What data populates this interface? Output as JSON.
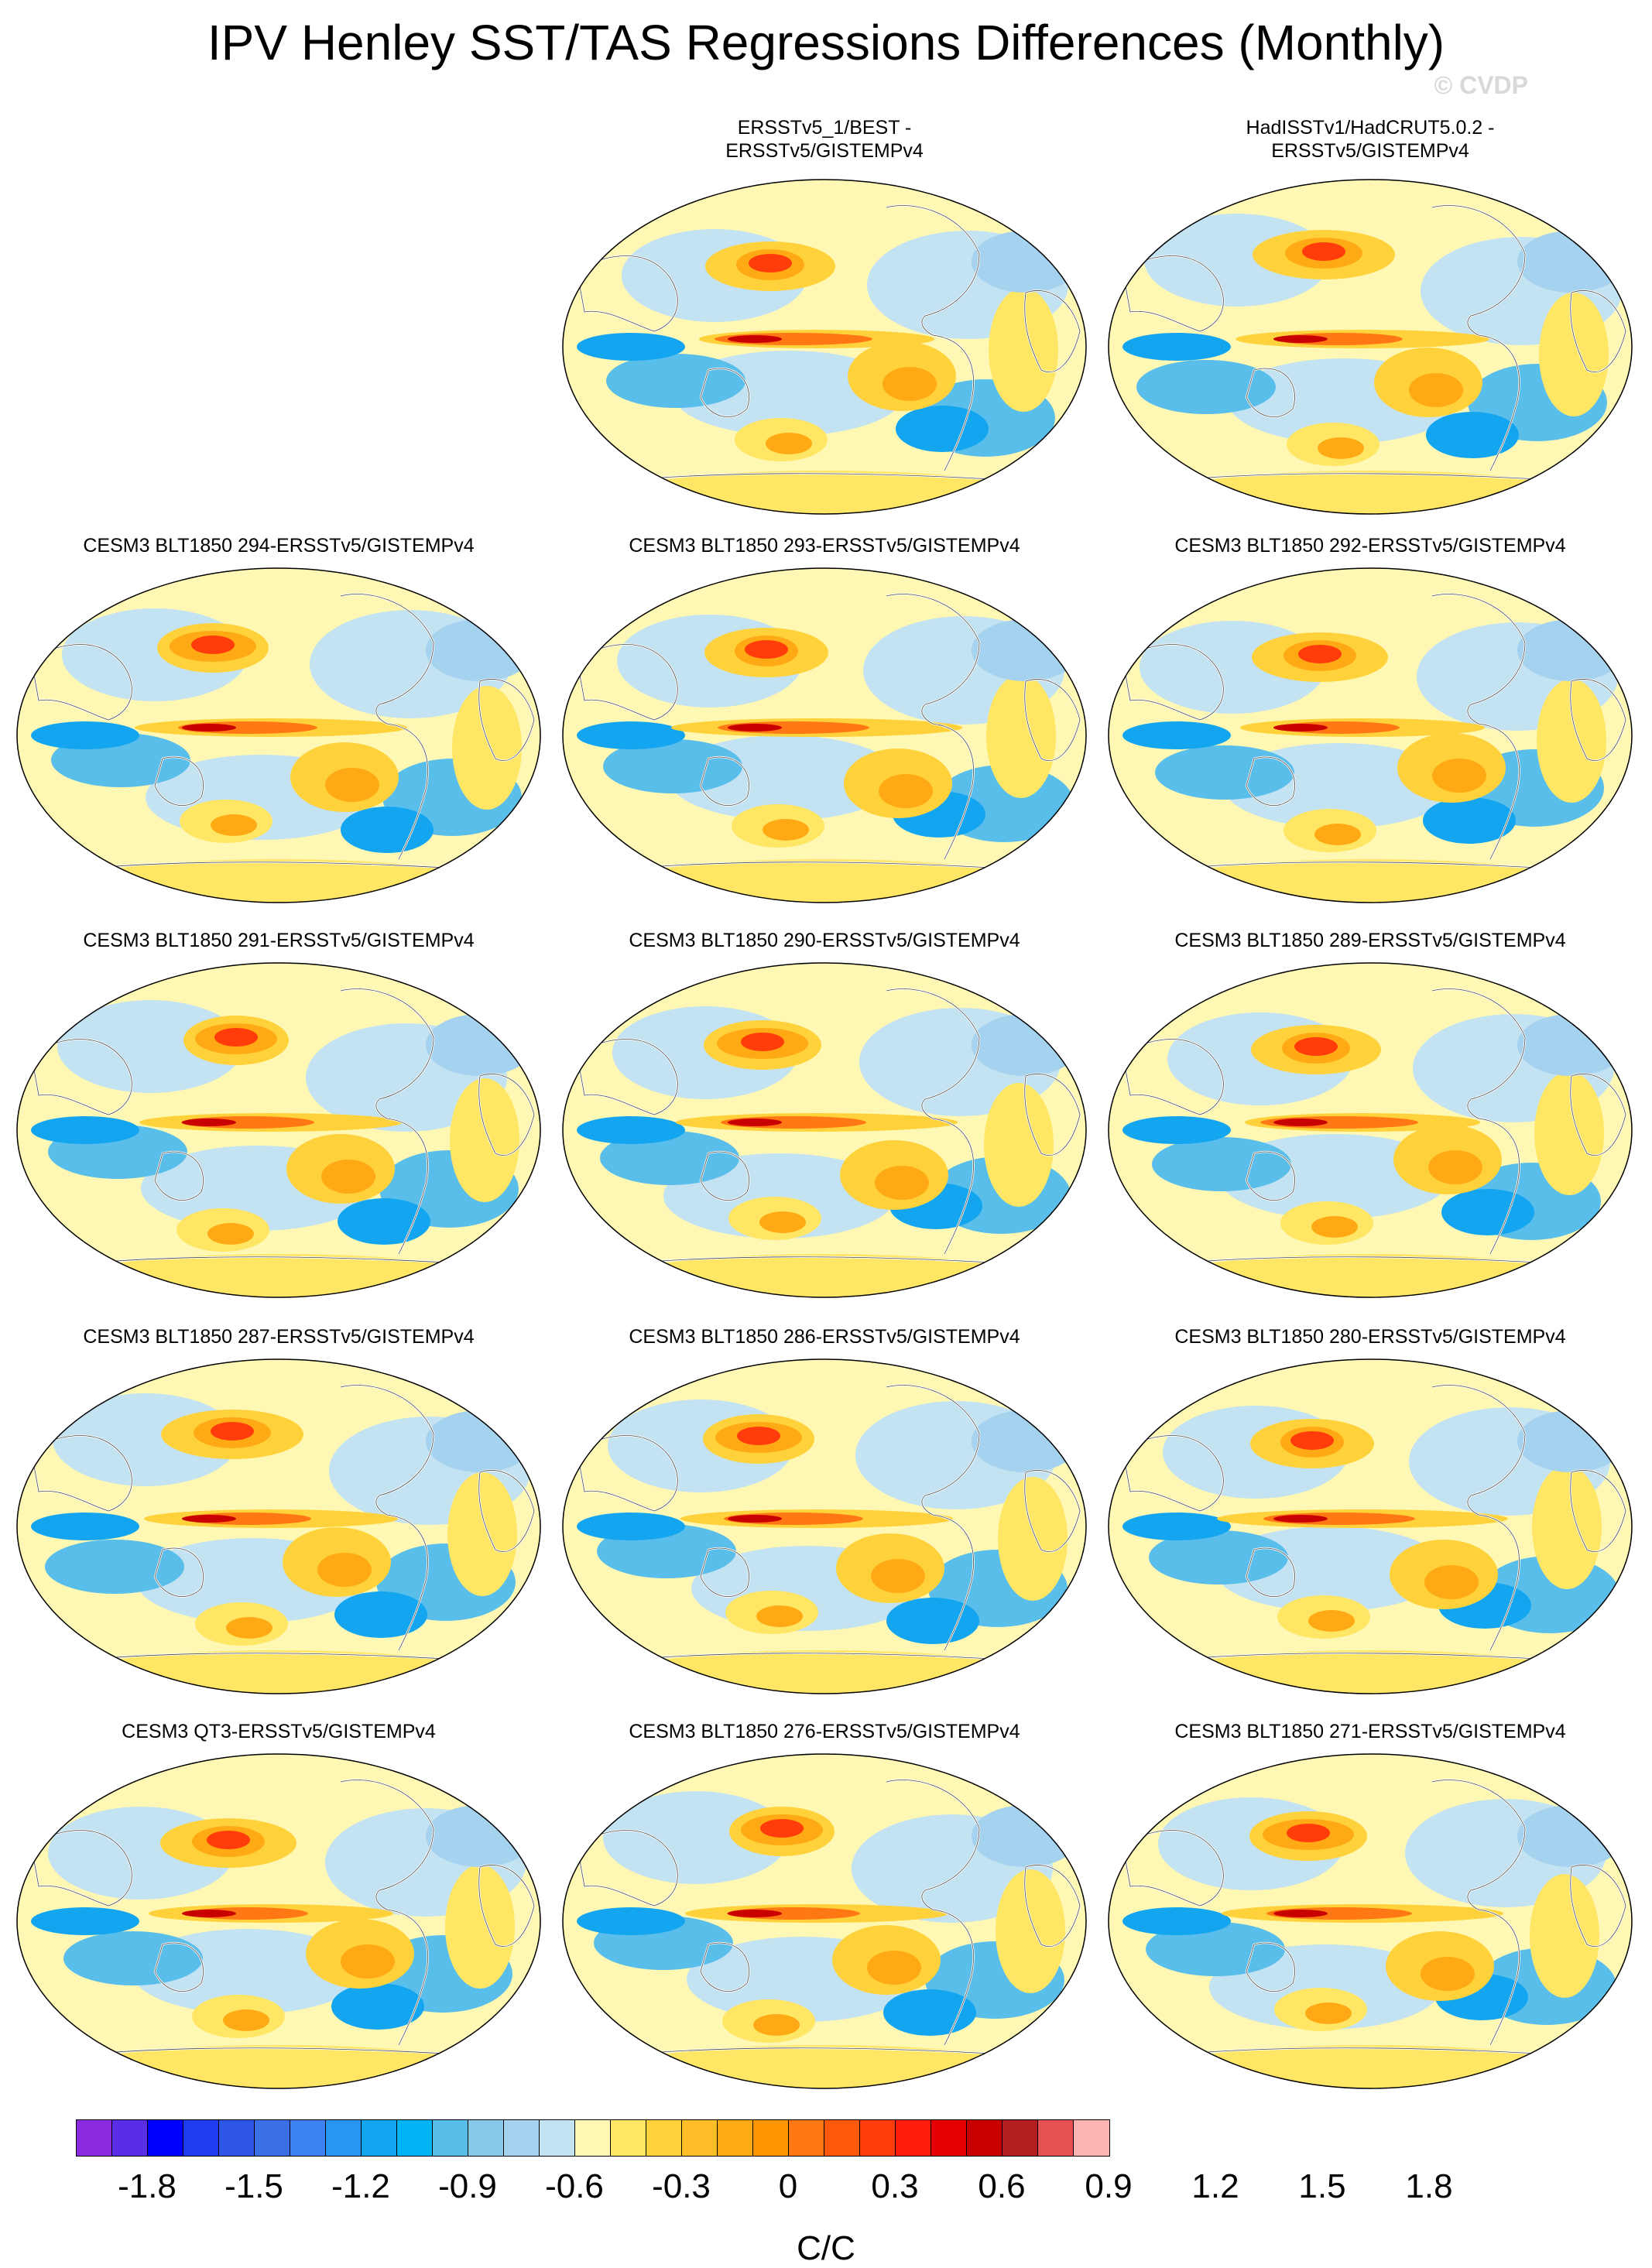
{
  "title": "IPV Henley SST/TAS Regressions Differences (Monthly)",
  "copyright": "© CVDP",
  "panels": [
    {
      "id": "p1",
      "label": "ERSSTv5_1/BEST -\nERSSTv5/GISTEMPv4"
    },
    {
      "id": "p2",
      "label": "HadISSTv1/HadCRUT5.0.2 -\nERSSTv5/GISTEMPv4"
    },
    {
      "id": "p3",
      "label": "CESM3 BLT1850 294-ERSSTv5/GISTEMPv4"
    },
    {
      "id": "p4",
      "label": "CESM3 BLT1850 293-ERSSTv5/GISTEMPv4"
    },
    {
      "id": "p5",
      "label": "CESM3 BLT1850 292-ERSSTv5/GISTEMPv4"
    },
    {
      "id": "p6",
      "label": "CESM3 BLT1850 291-ERSSTv5/GISTEMPv4"
    },
    {
      "id": "p7",
      "label": "CESM3 BLT1850 290-ERSSTv5/GISTEMPv4"
    },
    {
      "id": "p8",
      "label": "CESM3 BLT1850 289-ERSSTv5/GISTEMPv4"
    },
    {
      "id": "p9",
      "label": "CESM3 BLT1850 287-ERSSTv5/GISTEMPv4"
    },
    {
      "id": "p10",
      "label": "CESM3 BLT1850 286-ERSSTv5/GISTEMPv4"
    },
    {
      "id": "p11",
      "label": "CESM3 BLT1850 280-ERSSTv5/GISTEMPv4"
    },
    {
      "id": "p12",
      "label": "CESM3 QT3-ERSSTv5/GISTEMPv4"
    },
    {
      "id": "p13",
      "label": "CESM3 BLT1850 276-ERSSTv5/GISTEMPv4"
    },
    {
      "id": "p14",
      "label": "CESM3 BLT1850 271-ERSSTv5/GISTEMPv4"
    }
  ],
  "chart_data": {
    "type": "heatmap",
    "units": "C/C",
    "colorbar": {
      "tick_labels": [
        "-1.8",
        "-1.5",
        "-1.2",
        "-0.9",
        "-0.6",
        "-0.3",
        "0",
        "0.3",
        "0.6",
        "0.9",
        "1.2",
        "1.5",
        "1.8"
      ],
      "levels": [
        -2.0,
        -1.9,
        -1.8,
        -1.7,
        -1.6,
        -1.5,
        -1.4,
        -1.3,
        -1.2,
        -1.1,
        -1.0,
        -0.9,
        -0.8,
        -0.7,
        -0.6,
        -0.5,
        -0.4,
        -0.3,
        -0.2,
        -0.1,
        0,
        0.1,
        0.2,
        0.3,
        0.4,
        0.5,
        0.6,
        0.7,
        0.8,
        0.9,
        1.0,
        1.1,
        1.2,
        1.3,
        1.4,
        1.5,
        1.6,
        1.7,
        1.8,
        1.9,
        2.0
      ],
      "colors": [
        "#8a2be2",
        "#5a2ee6",
        "#0000ff",
        "#1e3cf0",
        "#2d55e6",
        "#3c6ee6",
        "#3c82f0",
        "#2896f0",
        "#14a5f0",
        "#00b4f5",
        "#5abeeb",
        "#87c8eb",
        "#a5d2ee",
        "#c3e2f2",
        "#fff8b4",
        "#ffe664",
        "#ffd23c",
        "#ffbe28",
        "#ffaa14",
        "#ff9600",
        "#ff7814",
        "#ff5a0a",
        "#ff3c0a",
        "#ff1e0a",
        "#e60000",
        "#c80000",
        "#b41e1e",
        "#e65050",
        "#ffb4b4"
      ]
    },
    "map_projection": "Robinson-like global map centered on the Pacific"
  }
}
